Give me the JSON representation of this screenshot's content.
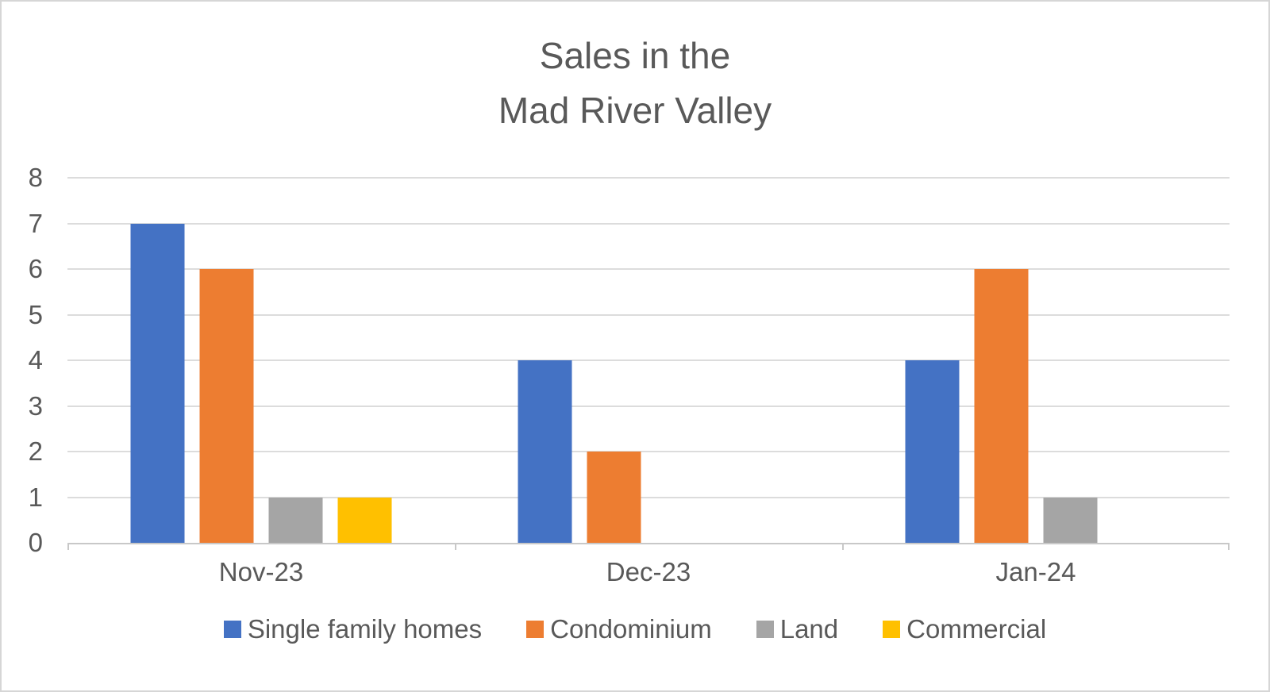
{
  "title": {
    "line1": "Sales in the",
    "line2": "Mad River Valley"
  },
  "chart_data": {
    "type": "bar",
    "title": "Sales in the\nMad River Valley",
    "title_lines": [
      "Sales in the",
      "Mad River Valley"
    ],
    "categories": [
      "Nov-23",
      "Dec-23",
      "Jan-24"
    ],
    "series": [
      {
        "name": "Single family homes",
        "color": "#4472C4",
        "values": [
          7,
          4,
          4
        ]
      },
      {
        "name": "Condominium",
        "color": "#ED7D31",
        "values": [
          6,
          2,
          6
        ]
      },
      {
        "name": "Land",
        "color": "#A5A5A5",
        "values": [
          1,
          0,
          1
        ]
      },
      {
        "name": "Commercial",
        "color": "#FFC000",
        "values": [
          1,
          0,
          0
        ]
      }
    ],
    "xlabel": "",
    "ylabel": "",
    "ylim": [
      0,
      8
    ],
    "yticks": [
      0,
      1,
      2,
      3,
      4,
      5,
      6,
      7,
      8
    ],
    "grid": true,
    "legend_position": "bottom",
    "colors": {
      "text": "#595959",
      "gridline": "#dcdcdc",
      "axis": "#c8c8c8",
      "background": "#ffffff",
      "border": "#d6d6d6"
    }
  }
}
